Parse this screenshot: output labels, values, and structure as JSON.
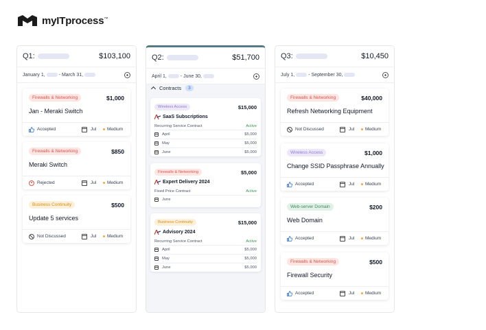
{
  "brand": {
    "name": "myITprocess",
    "tm": "™"
  },
  "columns": [
    {
      "label": "Q1:",
      "total": "$103,100",
      "dates": {
        "start": "January 1,",
        "sep": "- March 31,"
      },
      "cards": [
        {
          "tag": "Firewalls & Networking",
          "tag_type": "fw",
          "amount": "$1,000",
          "title": "Jan - Meraki Switch",
          "status": "Accepted",
          "status_icon": "thumbs-up-icon",
          "month": "Jul",
          "priority": "Medium"
        },
        {
          "tag": "Firewalls & Networking",
          "tag_type": "fw",
          "amount": "$850",
          "title": "Meraki Switch",
          "status": "Rejected",
          "status_icon": "rejected-icon",
          "month": "Jul",
          "priority": "Medium"
        },
        {
          "tag": "Business Continuity",
          "tag_type": "bc",
          "amount": "$500",
          "title": "Update 5 services",
          "status": "Not Discussed",
          "status_icon": "not-discussed-icon",
          "month": "Jul",
          "priority": "Medium"
        }
      ]
    },
    {
      "label": "Q2:",
      "total": "$51,700",
      "dates": {
        "start": "April 1,",
        "sep": "- June 30,"
      },
      "contracts_label": "Contracts",
      "contracts_count": "3",
      "contracts": [
        {
          "tag": "Wireless Access",
          "tag_type": "wa",
          "amount": "$15,000",
          "name": "SaaS Subscriptions",
          "type": "Recurring Service Contract",
          "status": "Active",
          "months": [
            {
              "m": "April",
              "v": "$5,000"
            },
            {
              "m": "May",
              "v": "$5,000"
            },
            {
              "m": "June",
              "v": "$5,000"
            }
          ]
        },
        {
          "tag": "Firewalls & Networking",
          "tag_type": "fw",
          "amount": "$5,000",
          "name": "Expert Delivery 2024",
          "type": "Fixed Price Contract",
          "status": "Active",
          "months": [
            {
              "m": "June",
              "v": ""
            }
          ]
        },
        {
          "tag": "Business Continuity",
          "tag_type": "bc",
          "amount": "$15,000",
          "name": "Advisory 2024",
          "type": "Recurring Service Contract",
          "status": "Active",
          "months": [
            {
              "m": "April",
              "v": "$5,000"
            },
            {
              "m": "May",
              "v": "$5,000"
            },
            {
              "m": "June",
              "v": "$5,000"
            }
          ]
        }
      ]
    },
    {
      "label": "Q3:",
      "total": "$10,450",
      "dates": {
        "start": "July 1,",
        "sep": "- September 30,"
      },
      "cards": [
        {
          "tag": "Firewalls & Networking",
          "tag_type": "fw",
          "amount": "$40,000",
          "title": "Refresh Networking Equipment",
          "status": "Not Discussed",
          "status_icon": "not-discussed-icon",
          "month": "Jul",
          "priority": "Medium"
        },
        {
          "tag": "Wireless Access",
          "tag_type": "wa",
          "amount": "$1,000",
          "title": "Change SSID Passphrase Annually",
          "status": "Accepted",
          "status_icon": "thumbs-up-icon",
          "month": "Jul",
          "priority": "Medium"
        },
        {
          "tag": "Web-server Domain",
          "tag_type": "ws",
          "amount": "$200",
          "title": "Web Domain",
          "status": "Accepted",
          "status_icon": "thumbs-up-icon",
          "month": "Jul",
          "priority": "Medium"
        },
        {
          "tag": "Firewalls & Networking",
          "tag_type": "fw",
          "amount": "$500",
          "title": "Firewall Security",
          "status": "Accepted",
          "status_icon": "thumbs-up-icon",
          "month": "Jul",
          "priority": "Medium"
        }
      ]
    }
  ],
  "colors": {
    "accent": "#557a82",
    "priority_dot": "#f4a43b",
    "active": "#2f9a4f",
    "thumbs": "#2f6fd0"
  }
}
